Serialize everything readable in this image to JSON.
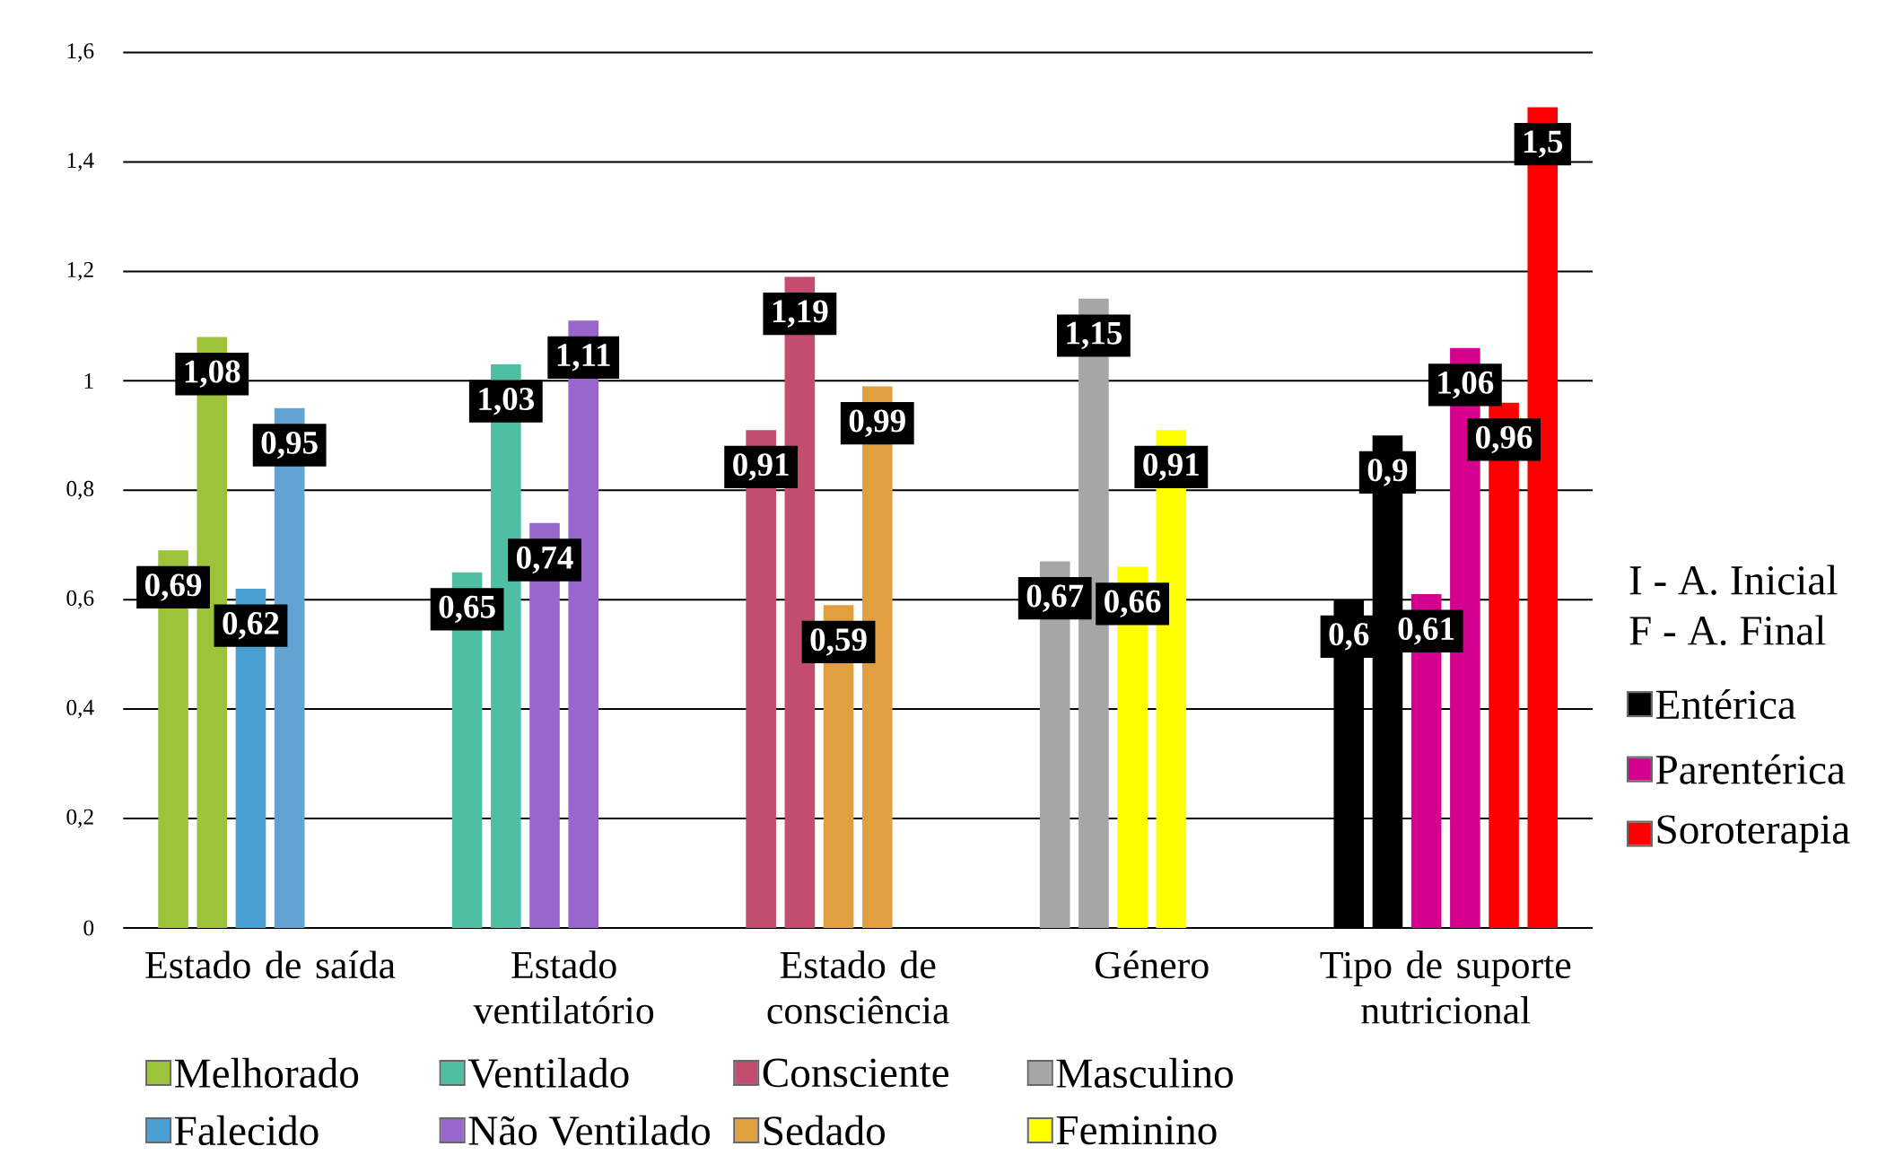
{
  "chart_data": {
    "type": "bar",
    "categories": [
      "Estado de saída",
      "Estado ventilatório",
      "Estado de consciência",
      "Género",
      "Tipo de suporte nutricional"
    ],
    "series": [
      {
        "colors": [
          "#9dc33b",
          "#4fbfa3",
          "#c24d6e",
          "#a6a6a6",
          "#000000"
        ],
        "values": [
          0.69,
          0.65,
          0.91,
          0.67,
          0.6
        ],
        "value_labels": [
          "0,69",
          "0,65",
          "0,91",
          "0,67",
          "0,6"
        ]
      },
      {
        "colors": [
          "#9dc33b",
          "#4fbfa3",
          "#c24d6e",
          "#a6a6a6",
          "#000000"
        ],
        "values": [
          1.08,
          1.03,
          1.19,
          1.15,
          0.9
        ],
        "value_labels": [
          "1,08",
          "1,03",
          "1,19",
          "1,15",
          "0,9"
        ]
      },
      {
        "colors": [
          "#4a9fd4",
          "#9966cc",
          "#e0a040",
          "#ffff00",
          "#d6008f"
        ],
        "values": [
          0.62,
          0.74,
          0.59,
          0.66,
          0.61
        ],
        "value_labels": [
          "0,62",
          "0,74",
          "0,59",
          "0,66",
          "0,61"
        ]
      },
      {
        "colors": [
          "#62a3d3",
          "#9966cc",
          "#e0a040",
          "#ffff00",
          "#d6008f"
        ],
        "values": [
          0.95,
          1.11,
          0.99,
          0.91,
          1.06
        ],
        "value_labels": [
          "0,95",
          "1,11",
          "0,99",
          "0,91",
          "1,06"
        ]
      },
      {
        "colors": [
          "#ff0000",
          "#ff0000",
          "#ff0000",
          "#ff0000",
          "#ff0000"
        ],
        "values": [
          null,
          null,
          null,
          null,
          0.96
        ],
        "value_labels": [
          null,
          null,
          null,
          null,
          "0,96"
        ]
      },
      {
        "colors": [
          "#ff0000",
          "#ff0000",
          "#ff0000",
          "#ff0000",
          "#ff0000"
        ],
        "values": [
          null,
          null,
          null,
          null,
          1.5
        ],
        "value_labels": [
          null,
          null,
          null,
          null,
          "1,5"
        ]
      }
    ],
    "ylim": [
      0,
      1.6
    ],
    "yticks": [
      0,
      {
        "value": 0.2,
        "label": "0,2"
      },
      {
        "value": 0.4,
        "label": "0,4"
      },
      {
        "value": 0.6,
        "label": "0,6"
      },
      {
        "value": 0.8,
        "label": "0,8"
      },
      1,
      {
        "value": 1.2,
        "label": "1,2"
      },
      {
        "value": 1.4,
        "label": "1,4"
      },
      {
        "value": 1.6,
        "label": "1,6"
      }
    ],
    "grid": "y",
    "annotations": [
      "I - A. Inicial",
      "F - A. Final",
      "Melhorado",
      "Falecido",
      "Ventilado",
      "Não Ventilado",
      "Consciente",
      "Sedado",
      "Masculino",
      "Feminino",
      "Entérica",
      "Parentérica",
      "Soroterapia"
    ]
  }
}
